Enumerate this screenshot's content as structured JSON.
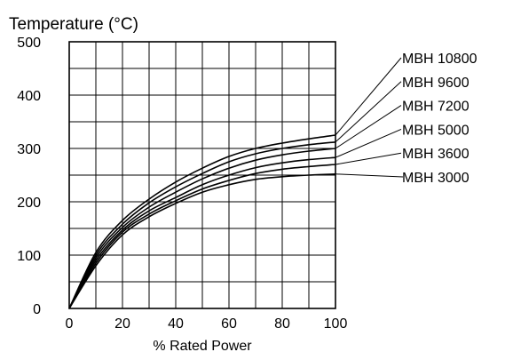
{
  "chart_data": {
    "type": "line",
    "title": "",
    "ylabel": "Temperature (°C)",
    "xlabel": "% Rated Power",
    "xlim": [
      0,
      100
    ],
    "ylim": [
      0,
      500
    ],
    "x_ticks": [
      "0",
      "20",
      "40",
      "60",
      "80",
      "100"
    ],
    "y_ticks": [
      "0",
      "100",
      "200",
      "300",
      "400",
      "500"
    ],
    "grid": true,
    "legend": "right, leader lines to curve ends",
    "x": [
      0,
      10,
      20,
      30,
      40,
      50,
      60,
      70,
      80,
      90,
      100
    ],
    "series": [
      {
        "name": "MBH 10800",
        "values": [
          0,
          105,
          165,
          205,
          237,
          263,
          285,
          300,
          310,
          318,
          325
        ]
      },
      {
        "name": "MBH 9600",
        "values": [
          0,
          100,
          158,
          198,
          228,
          253,
          275,
          290,
          300,
          307,
          312
        ]
      },
      {
        "name": "MBH 7200",
        "values": [
          0,
          95,
          152,
          190,
          218,
          243,
          263,
          278,
          288,
          295,
          300
        ]
      },
      {
        "name": "MBH 5000",
        "values": [
          0,
          90,
          147,
          183,
          208,
          232,
          250,
          264,
          273,
          279,
          283
        ]
      },
      {
        "name": "MBH 3600",
        "values": [
          0,
          85,
          143,
          177,
          202,
          224,
          240,
          253,
          261,
          266,
          270
        ]
      },
      {
        "name": "MBH 3000",
        "values": [
          0,
          80,
          138,
          172,
          197,
          218,
          232,
          242,
          247,
          250,
          252
        ]
      }
    ]
  }
}
